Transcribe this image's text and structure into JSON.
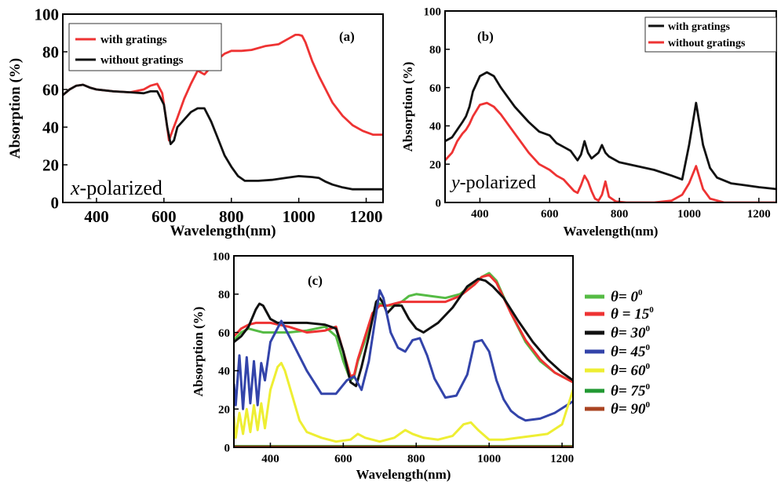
{
  "chart_data": [
    {
      "id": "a",
      "type": "line",
      "panel_label": "(a)",
      "annotation": "x-polarized",
      "annotation_italic": "x",
      "annotation_rest": "-polarized",
      "xlabel": "Wavelength(nm)",
      "ylabel": "Absorption (%)",
      "xlim": [
        300,
        1250
      ],
      "ylim": [
        0,
        100
      ],
      "xticks": [
        400,
        600,
        800,
        1000,
        1200
      ],
      "yticks": [
        0,
        20,
        40,
        60,
        80,
        100
      ],
      "legend_position": "top-left",
      "series": [
        {
          "name": "with gratings",
          "color": "#ee3333",
          "x": [
            300,
            320,
            340,
            360,
            380,
            400,
            450,
            500,
            540,
            560,
            580,
            595,
            605,
            615,
            625,
            640,
            660,
            680,
            700,
            720,
            740,
            760,
            780,
            800,
            830,
            860,
            900,
            940,
            970,
            990,
            1000,
            1010,
            1020,
            1040,
            1060,
            1080,
            1100,
            1130,
            1160,
            1190,
            1220,
            1250
          ],
          "y": [
            57,
            60,
            62,
            62.5,
            61,
            60,
            59,
            58.5,
            60,
            62,
            63,
            58,
            46,
            33,
            38,
            45,
            55,
            63,
            70,
            68,
            72,
            76,
            79,
            80.5,
            80.5,
            81,
            83,
            84,
            87,
            89,
            89,
            88.5,
            85,
            75,
            67,
            60,
            53,
            46,
            41,
            38,
            36,
            36
          ]
        },
        {
          "name": "without gratings",
          "color": "#111111",
          "x": [
            300,
            320,
            340,
            360,
            380,
            400,
            450,
            500,
            540,
            560,
            580,
            600,
            610,
            620,
            630,
            640,
            660,
            680,
            700,
            720,
            740,
            760,
            780,
            800,
            820,
            840,
            880,
            920,
            960,
            1000,
            1040,
            1060,
            1080,
            1100,
            1130,
            1160,
            1190,
            1220,
            1250
          ],
          "y": [
            57,
            60,
            62,
            62.5,
            61,
            60,
            59,
            58.5,
            58,
            59,
            59,
            52,
            40,
            31,
            33,
            40,
            44,
            48,
            50,
            50,
            43,
            34,
            25,
            19,
            14,
            11.5,
            11.5,
            12,
            13,
            14,
            13.5,
            13,
            11,
            9.5,
            8,
            7,
            7,
            7,
            7
          ]
        }
      ]
    },
    {
      "id": "b",
      "type": "line",
      "panel_label": "(b)",
      "annotation": "y-polarized",
      "annotation_italic": "y",
      "annotation_rest": "-polarized",
      "xlabel": "Wavelength(nm)",
      "ylabel": "Absorption (%)",
      "xlim": [
        300,
        1250
      ],
      "ylim": [
        0,
        100
      ],
      "xticks": [
        400,
        600,
        800,
        1000,
        1200
      ],
      "yticks": [
        0,
        20,
        40,
        60,
        80,
        100
      ],
      "legend_position": "top-right",
      "series": [
        {
          "name": "with gratings",
          "color": "#111111",
          "x": [
            300,
            320,
            335,
            350,
            360,
            370,
            380,
            400,
            420,
            440,
            460,
            500,
            540,
            570,
            600,
            620,
            640,
            660,
            680,
            690,
            700,
            710,
            720,
            740,
            750,
            760,
            770,
            780,
            800,
            850,
            900,
            950,
            980,
            1000,
            1020,
            1040,
            1060,
            1080,
            1120,
            1160,
            1200,
            1250
          ],
          "y": [
            32,
            34,
            38,
            42,
            45,
            50,
            58,
            66,
            68,
            66,
            60,
            50,
            42,
            37,
            35,
            31,
            29,
            27,
            22,
            25,
            32,
            26,
            23,
            26,
            30,
            26,
            24,
            23,
            21,
            19,
            17,
            14,
            12,
            30,
            52,
            30,
            18,
            13,
            10,
            9,
            8,
            7
          ]
        },
        {
          "name": "without gratings",
          "color": "#ee3333",
          "x": [
            300,
            320,
            335,
            350,
            360,
            370,
            380,
            400,
            420,
            440,
            460,
            500,
            540,
            570,
            600,
            620,
            640,
            660,
            670,
            680,
            690,
            700,
            710,
            720,
            730,
            740,
            750,
            760,
            770,
            790,
            820,
            850,
            900,
            950,
            980,
            1000,
            1020,
            1040,
            1060,
            1100,
            1250
          ],
          "y": [
            22,
            26,
            32,
            36,
            38,
            41,
            45,
            51,
            52,
            50,
            46,
            36,
            26,
            20,
            17,
            14,
            12,
            8,
            6,
            5,
            9,
            14,
            11,
            6,
            2,
            1,
            4,
            11,
            3,
            0.5,
            0,
            0,
            0,
            1,
            4,
            10,
            19,
            7,
            2,
            0,
            0
          ]
        }
      ]
    },
    {
      "id": "c",
      "type": "line",
      "panel_label": "(c)",
      "xlabel": "Wavelength(nm)",
      "ylabel": "Absorption (%)",
      "xlim": [
        300,
        1230
      ],
      "ylim": [
        0,
        100
      ],
      "xticks": [
        400,
        600,
        800,
        1000,
        1200
      ],
      "yticks": [
        0,
        20,
        40,
        60,
        80,
        100
      ],
      "legend_position": "right-outside",
      "series": [
        {
          "name": "θ= 0",
          "sup": "0",
          "color": "#55bb44",
          "x": [
            300,
            320,
            340,
            360,
            380,
            400,
            450,
            500,
            550,
            580,
            600,
            620,
            630,
            640,
            660,
            680,
            700,
            720,
            740,
            760,
            780,
            800,
            840,
            880,
            920,
            960,
            980,
            1000,
            1020,
            1060,
            1100,
            1140,
            1180,
            1230
          ],
          "y": [
            56,
            60,
            62,
            61,
            60,
            60,
            60,
            61,
            63,
            58,
            45,
            35,
            37,
            45,
            56,
            68,
            75,
            74,
            74,
            76,
            79,
            80,
            79,
            78,
            80,
            86,
            89,
            91,
            87,
            70,
            55,
            45,
            39,
            34
          ]
        },
        {
          "name": "θ = 15",
          "sup": "0",
          "color": "#ee3333",
          "x": [
            300,
            320,
            340,
            360,
            380,
            400,
            450,
            500,
            550,
            580,
            600,
            620,
            630,
            640,
            660,
            680,
            700,
            720,
            740,
            760,
            780,
            800,
            840,
            880,
            920,
            960,
            980,
            1000,
            1020,
            1060,
            1100,
            1140,
            1180,
            1230
          ],
          "y": [
            58,
            62,
            64,
            65,
            65,
            65,
            63,
            60,
            61,
            63,
            50,
            37,
            38,
            46,
            58,
            70,
            74,
            74,
            75,
            76,
            76,
            76,
            76,
            76,
            79,
            85,
            89,
            90,
            86,
            70,
            56,
            46,
            39,
            34
          ]
        },
        {
          "name": "θ= 30",
          "sup": "0",
          "color": "#111111",
          "x": [
            300,
            320,
            340,
            360,
            370,
            380,
            400,
            420,
            450,
            500,
            550,
            580,
            600,
            620,
            635,
            650,
            670,
            690,
            700,
            710,
            720,
            740,
            760,
            780,
            800,
            820,
            860,
            900,
            940,
            970,
            990,
            1010,
            1040,
            1080,
            1120,
            1160,
            1200,
            1230
          ],
          "y": [
            55,
            58,
            63,
            72,
            75,
            74,
            67,
            65,
            65,
            65,
            64,
            62,
            50,
            34,
            32,
            42,
            58,
            76,
            78,
            75,
            70,
            74,
            74,
            67,
            62,
            60,
            65,
            73,
            84,
            88,
            87,
            84,
            78,
            66,
            55,
            46,
            39,
            35
          ]
        },
        {
          "name": "θ= 45",
          "sup": "0",
          "color": "#3344aa",
          "x": [
            300,
            305,
            315,
            325,
            335,
            345,
            355,
            365,
            375,
            385,
            400,
            430,
            460,
            500,
            540,
            580,
            610,
            630,
            650,
            670,
            690,
            700,
            710,
            730,
            750,
            770,
            790,
            810,
            830,
            850,
            880,
            910,
            940,
            960,
            980,
            1000,
            1020,
            1040,
            1060,
            1080,
            1100,
            1140,
            1180,
            1230
          ],
          "y": [
            33,
            22,
            48,
            20,
            47,
            23,
            45,
            22,
            44,
            35,
            55,
            66,
            55,
            40,
            28,
            28,
            35,
            37,
            30,
            45,
            70,
            82,
            78,
            60,
            52,
            50,
            56,
            57,
            48,
            36,
            26,
            27,
            38,
            55,
            56,
            50,
            35,
            25,
            19,
            16,
            14,
            15,
            18,
            24
          ]
        },
        {
          "name": "θ= 60",
          "sup": "0",
          "color": "#eeee33",
          "x": [
            300,
            305,
            315,
            325,
            335,
            345,
            355,
            365,
            375,
            385,
            400,
            420,
            430,
            440,
            460,
            480,
            500,
            540,
            580,
            620,
            640,
            660,
            700,
            740,
            770,
            790,
            820,
            860,
            900,
            930,
            950,
            970,
            1000,
            1040,
            1080,
            1120,
            1160,
            1200,
            1230
          ],
          "y": [
            16,
            5,
            18,
            7,
            20,
            8,
            22,
            9,
            23,
            10,
            30,
            42,
            44,
            40,
            27,
            14,
            8,
            5,
            3,
            4,
            7,
            5,
            3,
            5,
            9,
            7,
            5,
            4,
            6,
            12,
            13,
            9,
            4,
            4,
            5,
            6,
            7,
            12,
            30
          ]
        },
        {
          "name": "θ= 75",
          "sup": "0",
          "color": "#229933",
          "x": [
            300,
            1230
          ],
          "y": [
            0.6,
            0.6
          ]
        },
        {
          "name": "θ= 90",
          "sup": "0",
          "color": "#aa4422",
          "x": [
            300,
            1230
          ],
          "y": [
            0.3,
            0.3
          ]
        }
      ]
    }
  ]
}
